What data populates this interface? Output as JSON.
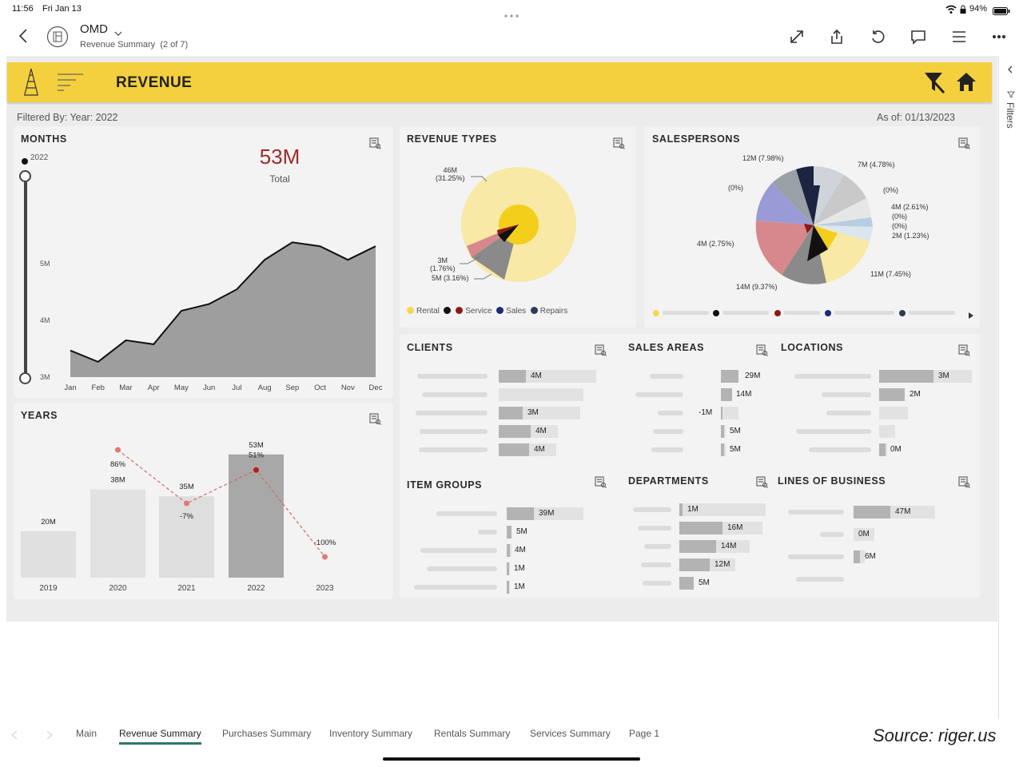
{
  "status": {
    "time": "11:56",
    "date": "Fri Jan 13",
    "battery": "94%"
  },
  "topbar": {
    "workspace": "OMD",
    "subtitle": "Revenue Summary",
    "page_count": "(2 of 7)"
  },
  "banner": {
    "title": "REVENUE"
  },
  "filter": {
    "text": "Filtered By: Year: 2022",
    "as_of": "As of: 01/13/2023"
  },
  "filters_pane": {
    "label": "Filters"
  },
  "months": {
    "title": "MONTHS",
    "slider_label": "2022",
    "total_value": "53M",
    "total_label": "Total",
    "y_ticks": [
      "5M",
      "4M",
      "3M"
    ],
    "chart_data": {
      "type": "area",
      "categories": [
        "Jan",
        "Feb",
        "Mar",
        "Apr",
        "May",
        "Jun",
        "Jul",
        "Aug",
        "Sep",
        "Oct",
        "Nov",
        "Dec"
      ],
      "values": [
        3.47,
        3.27,
        3.65,
        3.58,
        4.17,
        4.29,
        4.55,
        5.07,
        5.38,
        5.31,
        5.07,
        5.31
      ],
      "ylim": [
        3,
        5.99
      ]
    }
  },
  "years": {
    "title": "YEARS",
    "chart_data": {
      "type": "bar",
      "categories": [
        "2019",
        "2020",
        "2021",
        "2022",
        "2023"
      ],
      "values": [
        20,
        38,
        35,
        53,
        0
      ],
      "bar_labels": [
        "20M",
        "38M",
        "35M",
        "53M",
        ""
      ],
      "growth_labels": [
        "",
        "86%",
        "-7%",
        "51%",
        "-100%"
      ],
      "growth": [
        null,
        86,
        -7,
        51,
        -100
      ]
    }
  },
  "revenue_types": {
    "title": "REVENUE TYPES",
    "labels": [
      "46M\n(31.25%)",
      "3M\n(1.76%)",
      "5M (3.16%)"
    ],
    "legend": [
      "Rental",
      "Service",
      "Sales",
      "Repairs"
    ],
    "colors": {
      "rental": "#f5d84f",
      "service": "#8b1a1a",
      "sales": "#1b2a7a",
      "repairs": "#2d3a5a"
    }
  },
  "salespersons": {
    "title": "SALESPERSONS",
    "labels": [
      "12M (7.98%)",
      "7M (4.78%)",
      "(0%)",
      "(0%)",
      "4M (2.61%)",
      "(0%)",
      "(0%)",
      "2M (1.23%)",
      "4M (2.75%)",
      "11M (7.45%)",
      "14M (9.37%)"
    ]
  },
  "clients": {
    "title": "CLIENTS",
    "values": [
      "4M",
      "",
      "3M",
      "4M",
      "4M"
    ]
  },
  "sales_areas": {
    "title": "SALES AREAS",
    "values": [
      "29M",
      "14M",
      "-1M",
      "5M",
      "5M"
    ]
  },
  "locations": {
    "title": "LOCATIONS",
    "values": [
      "3M",
      "2M",
      "",
      "",
      "0M"
    ]
  },
  "item_groups": {
    "title": "ITEM GROUPS",
    "values": [
      "39M",
      "5M",
      "4M",
      "1M",
      "1M"
    ]
  },
  "departments": {
    "title": "DEPARTMENTS",
    "values": [
      "1M",
      "16M",
      "14M",
      "12M",
      "5M"
    ]
  },
  "lines_of_business": {
    "title": "LINES OF BUSINESS",
    "values": [
      "47M",
      "0M",
      "6M",
      ""
    ]
  },
  "tabs": [
    "Main",
    "Revenue Summary",
    "Purchases Summary",
    "Inventory Summary",
    "Rentals Summary",
    "Services Summary",
    "Page 1"
  ],
  "source": "Source: riger.us"
}
